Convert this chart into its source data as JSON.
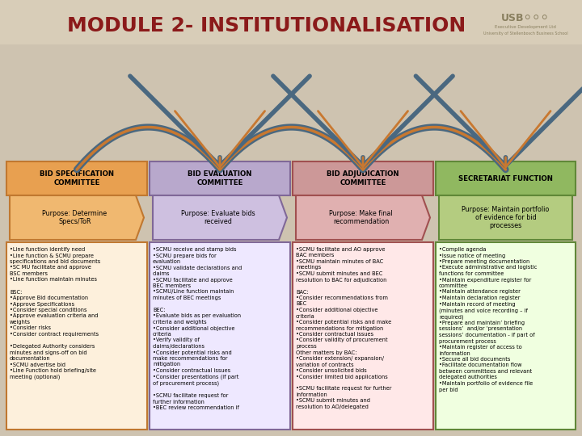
{
  "title": "MODULE 2- INSTITUTIONALISATION",
  "title_color": "#8B1A1A",
  "bg_color": "#CEC3B0",
  "columns": [
    {
      "header": "BID SPECIFICATION\nCOMMITTEE",
      "header_bg": "#E8A050",
      "header_border": "#C07830",
      "purpose_bg": "#F0B870",
      "purpose_border": "#C07830",
      "purpose_text": "Purpose: Determine\nSpecs/ToR",
      "body_bg": "#FDF0DC",
      "body_border": "#C07830",
      "body_text": "•Line function identify need\n•Line function & SCMU prepare\nspecifications and bid documents\n•SC MU facilitate and approve\nBSC members\n•Line function maintain minutes\n\nBSC:\n•Approve Bid documentation\n•Approve Specifications\n•Consider special conditions\n•Approve evaluation criteria and\nweights\n•Consider risks\n•Consider contract requirements\n\n•Delegated Authority considers\nminutes and signs-off on bid\ndocumentation\n•SCMU advertise bid\n•Line Function hold briefing/site\nmeeting (optional)"
    },
    {
      "header": "BID EVALUATION\nCOMMITTEE",
      "header_bg": "#B8A8CC",
      "header_border": "#806898",
      "purpose_bg": "#CEC0E0",
      "purpose_border": "#806898",
      "purpose_text": "Purpose: Evaluate bids\nreceived",
      "body_bg": "#EEE8FF",
      "body_border": "#806898",
      "body_text": "•SCMU receive and stamp bids\n•SCMU prepare bids for\nevaluation\n•SCMU validate declarations and\nclaims\n•SCMU facilitate and approve\nBEC members\n•SCMU/Line function maintain\nminutes of BEC meetings\n\nBEC:\n•Evaluate bids as per evaluation\ncriteria and weights\n•Consider additional objective\ncriteria\n•Verify validity of\nclaims/declarations\n•Consider potential risks and\nmake recommendations for\nmitigation\n•Consider contractual issues\n•Consider presentations (if part\nof procurement process)\n\n•SCMU facilitate request for\nfurther information\n•BEC review recommendation if"
    },
    {
      "header": "BID ADJUDICATION\nCOMMITTEE",
      "header_bg": "#CC9898",
      "header_border": "#A05050",
      "purpose_bg": "#E0B0B0",
      "purpose_border": "#A05050",
      "purpose_text": "Purpose: Make final\nrecommendation",
      "body_bg": "#FFE8E8",
      "body_border": "#A05050",
      "body_text": "•SCMU facilitate and AO approve\nBAC members\n•SCMU maintain minutes of BAC\nmeetings\n•SCMU submit minutes and BEC\nresolution to BAC for adjudication\n\nBAC:\n•Consider recommendations from\nBEC\n•Consider additional objective\ncriteria\n•Consider potential risks and make\nrecommendations for mitigation\n•Consider contractual issues\n•Consider validity of procurement\nprocess\nOther matters by BAC:\n•Consider extension/ expansion/\nvariation of contracts\n•Consider unsolicited bids\n•Consider limited bid applications\n\n•SCMU facilitate request for further\ninformation\n•SCMU submit minutes and\nresolution to AO/delegated"
    },
    {
      "header": "SECRETARIAT FUNCTION",
      "header_bg": "#90B860",
      "header_border": "#608838",
      "purpose_bg": "#B4CC80",
      "purpose_border": "#608838",
      "purpose_text": "Purpose: Maintain portfolio\nof evidence for bid\nprocesses",
      "body_bg": "#F0FFE0",
      "body_border": "#608838",
      "body_text": "•Compile agenda\n•Issue notice of meeting\n•Prepare meeting documentation\n•Execute administrative and logistic\nfunctions for committee\n•Maintain expenditure register for\ncommittee\n•Maintain attendance register\n•Maintain declaration register\n•Maintain record of meeting\n(minutes and voice recording – if\nrequired)\n•Prepare and maintain’ briefing\nsessions’  and/or ‘presentation\nsessions’ documentation - if part of\nprocurement process\n•Maintain register of access to\ninformation\n•Secure all bid documents\n•Facilitate documentation flow\nbetween committees and relevant\ndelegated authorities\n•Maintain portfolio of evidence file\nper bid"
    }
  ],
  "arrow_outer_color": "#4A6880",
  "arrow_inner_color": "#C87830"
}
